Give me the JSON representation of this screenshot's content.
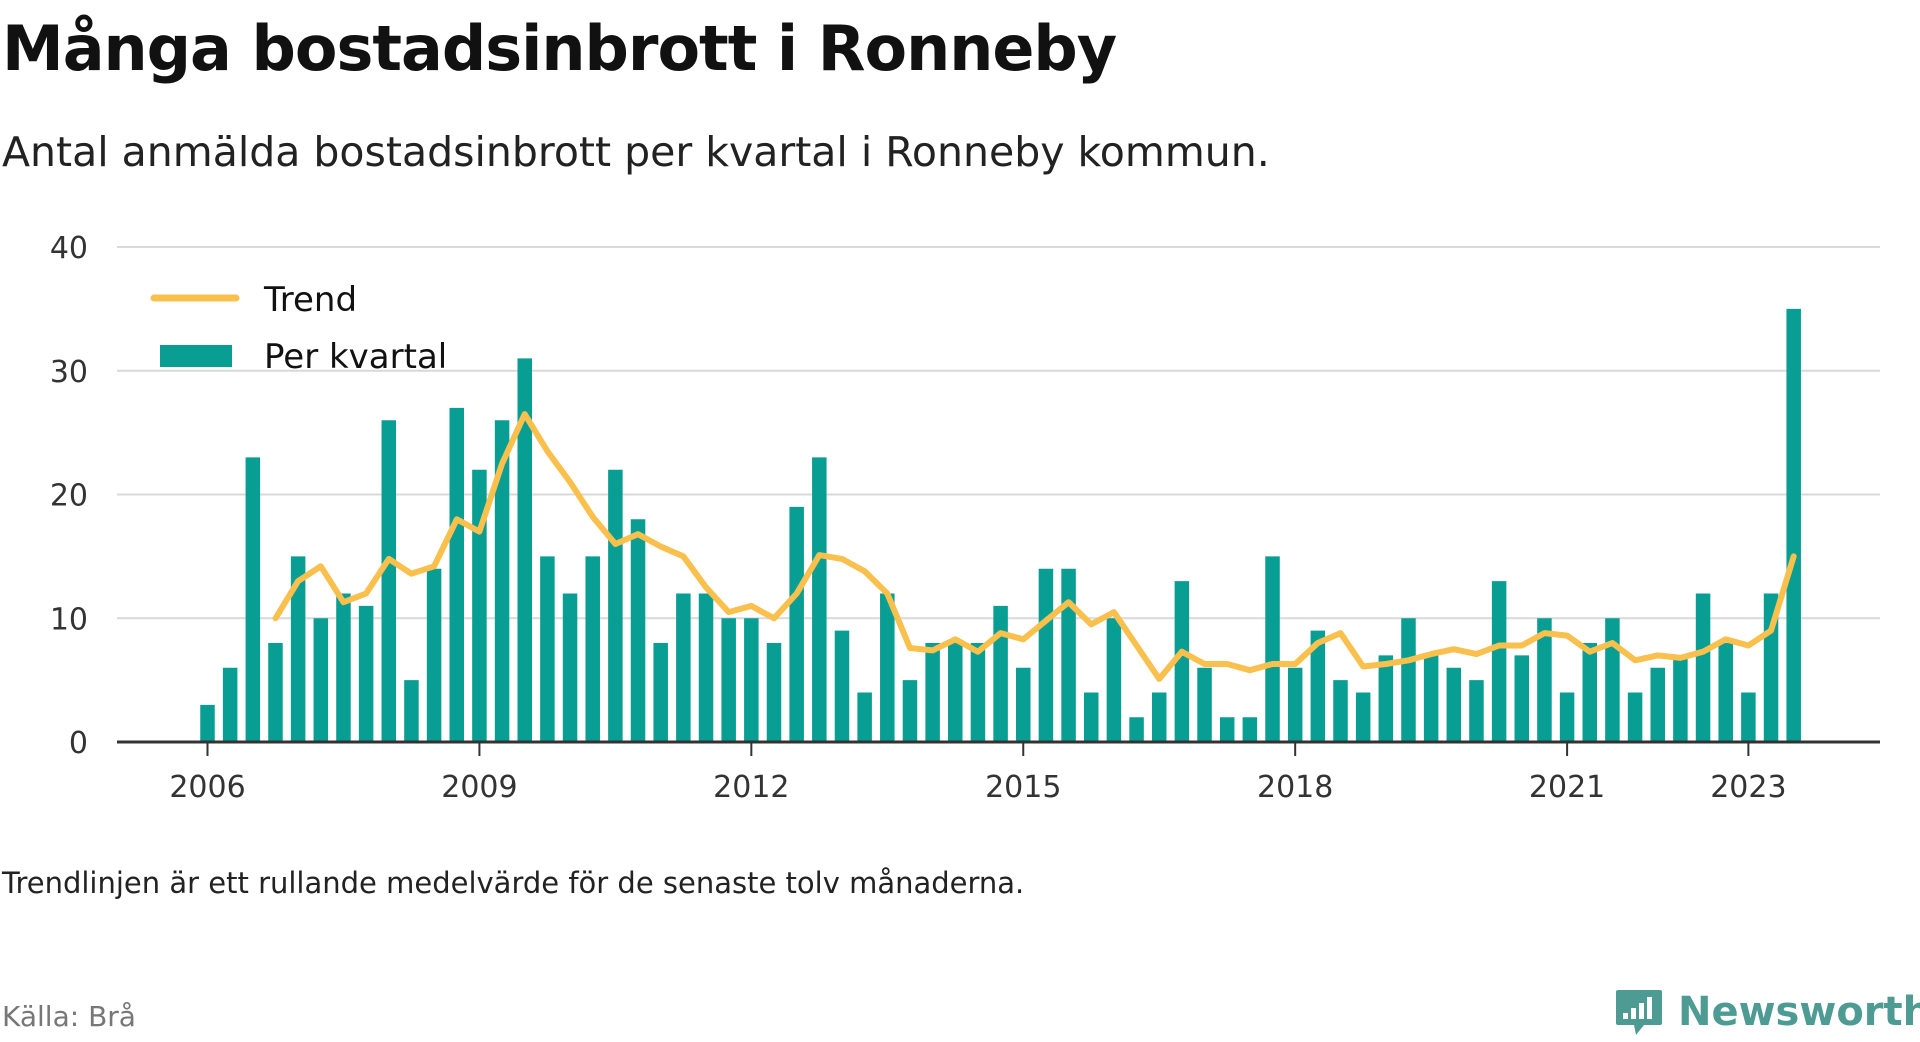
{
  "header": {
    "title": "Många bostadsinbrott i Ronneby",
    "subtitle": "Antal anmälda bostadsinbrott per kvartal i Ronneby kommun."
  },
  "footer": {
    "note": "Trendlinjen är ett rullande medelvärde för de senaste tolv månaderna.",
    "source": "Källa: Brå",
    "brand": "Newsworthy"
  },
  "colors": {
    "bar": "#089e93",
    "trend": "#f9c04e",
    "grid": "#d9d9d9",
    "axis": "#333333",
    "brand": "#4e9b93"
  },
  "chart_data": {
    "type": "bar",
    "x_unit": "quarter",
    "x_start": "2006 Q1",
    "xticks": [
      "2006",
      "2009",
      "2012",
      "2015",
      "2018",
      "2021",
      "2023"
    ],
    "ylim": [
      0,
      40
    ],
    "yticks": [
      0,
      10,
      20,
      30,
      40
    ],
    "grid": true,
    "legend": {
      "position": "top-left",
      "entries": [
        "Trend",
        "Per kvartal"
      ]
    },
    "series": [
      {
        "name": "Per kvartal",
        "type": "bar",
        "values": [
          3,
          6,
          23,
          8,
          15,
          10,
          12,
          11,
          26,
          5,
          14,
          27,
          22,
          26,
          31,
          15,
          12,
          15,
          22,
          18,
          8,
          12,
          12,
          10,
          10,
          8,
          19,
          23,
          9,
          4,
          12,
          5,
          8,
          8,
          8,
          11,
          6,
          14,
          14,
          4,
          10,
          2,
          4,
          13,
          6,
          2,
          2,
          15,
          6,
          9,
          5,
          4,
          7,
          10,
          7,
          6,
          5,
          13,
          7,
          10,
          4,
          8,
          10,
          4,
          6,
          7,
          12,
          8,
          4,
          12,
          35
        ]
      },
      {
        "name": "Trend",
        "type": "line",
        "start_index": 3,
        "values": [
          10,
          13,
          14.2,
          11.3,
          12,
          14.8,
          13.6,
          14.2,
          18,
          17,
          22.5,
          26.5,
          23.5,
          21,
          18.2,
          16,
          16.8,
          15.8,
          15,
          12.5,
          10.5,
          11,
          10,
          12,
          15.1,
          14.8,
          13.8,
          12,
          7.6,
          7.4,
          8.3,
          7.3,
          8.8,
          8.3,
          9.8,
          11.3,
          9.5,
          10.5,
          7.8,
          5.1,
          7.3,
          6.3,
          6.3,
          5.8,
          6.3,
          6.3,
          8,
          8.8,
          6.1,
          6.3,
          6.6,
          7.1,
          7.5,
          7.1,
          7.8,
          7.8,
          8.8,
          8.6,
          7.3,
          8,
          6.6,
          7,
          6.8,
          7.3,
          8.3,
          7.8,
          9,
          15
        ]
      }
    ]
  }
}
